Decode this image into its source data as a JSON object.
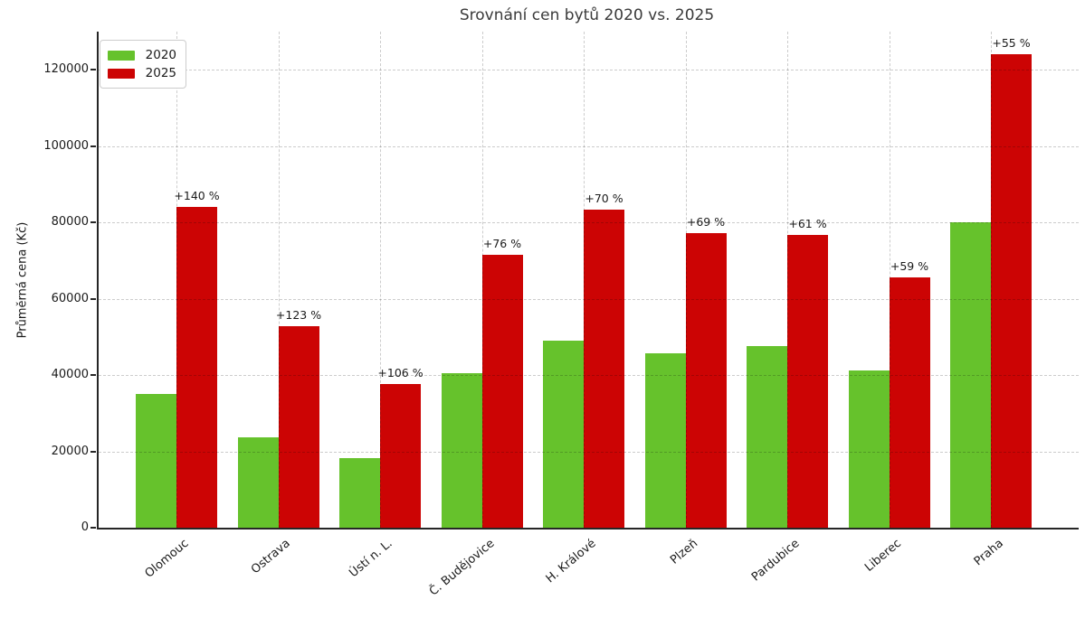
{
  "chart_data": {
    "type": "bar",
    "title": "Srovnání cen bytů 2020 vs. 2025",
    "xlabel": "",
    "ylabel": "Průměrná cena (Kč)",
    "categories": [
      "Olomouc",
      "Ostrava",
      "Ústí n. L.",
      "Č. Budějovice",
      "H. Králové",
      "Plzeň",
      "Pardubice",
      "Liberec",
      "Praha"
    ],
    "series": [
      {
        "name": "2020",
        "color": "#66c22c",
        "values": [
          35000,
          23700,
          18300,
          40600,
          49000,
          45600,
          47700,
          41300,
          80000
        ]
      },
      {
        "name": "2025",
        "color": "#cc0404",
        "values": [
          84000,
          52900,
          37700,
          71500,
          83300,
          77100,
          76800,
          65700,
          124000
        ]
      }
    ],
    "annotations": [
      "+140 %",
      "+123 %",
      "+106 %",
      "+76 %",
      "+70 %",
      "+69 %",
      "+61 %",
      "+59 %",
      "+55 %"
    ],
    "ylim": [
      0,
      130000
    ],
    "yticks": [
      0,
      20000,
      40000,
      60000,
      80000,
      100000,
      120000
    ],
    "grid": "dashed",
    "legend_position": "upper left",
    "colors": {
      "grid": "#cccccc",
      "spine": "#262626",
      "title_text": "#3a3a3a",
      "tick_text": "#1a1a1a"
    }
  }
}
